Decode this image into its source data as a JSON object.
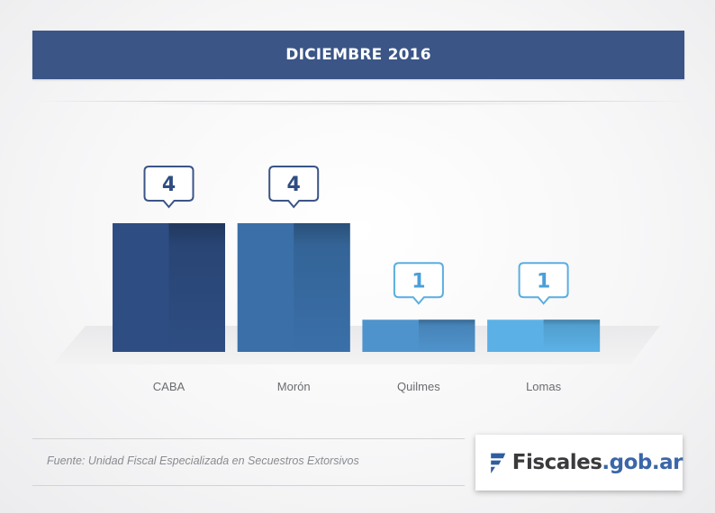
{
  "header": {
    "title": "DICIEMBRE 2016"
  },
  "chart_data": {
    "type": "bar",
    "title": "DICIEMBRE 2016",
    "categories": [
      "CABA",
      "Morón",
      "Quilmes",
      "Lomas"
    ],
    "values": [
      4,
      4,
      1,
      1
    ],
    "ylim": [
      0,
      4
    ],
    "grid": false,
    "colors": [
      "#2e4d82",
      "#3a6fa8",
      "#4f93cc",
      "#5bb1e6"
    ]
  },
  "footer": {
    "source": "Fuente: Unidad Fiscal Especializada en Secuestros Extorsivos",
    "logo_main": "Fiscales",
    "logo_domain": ".gob.ar"
  }
}
